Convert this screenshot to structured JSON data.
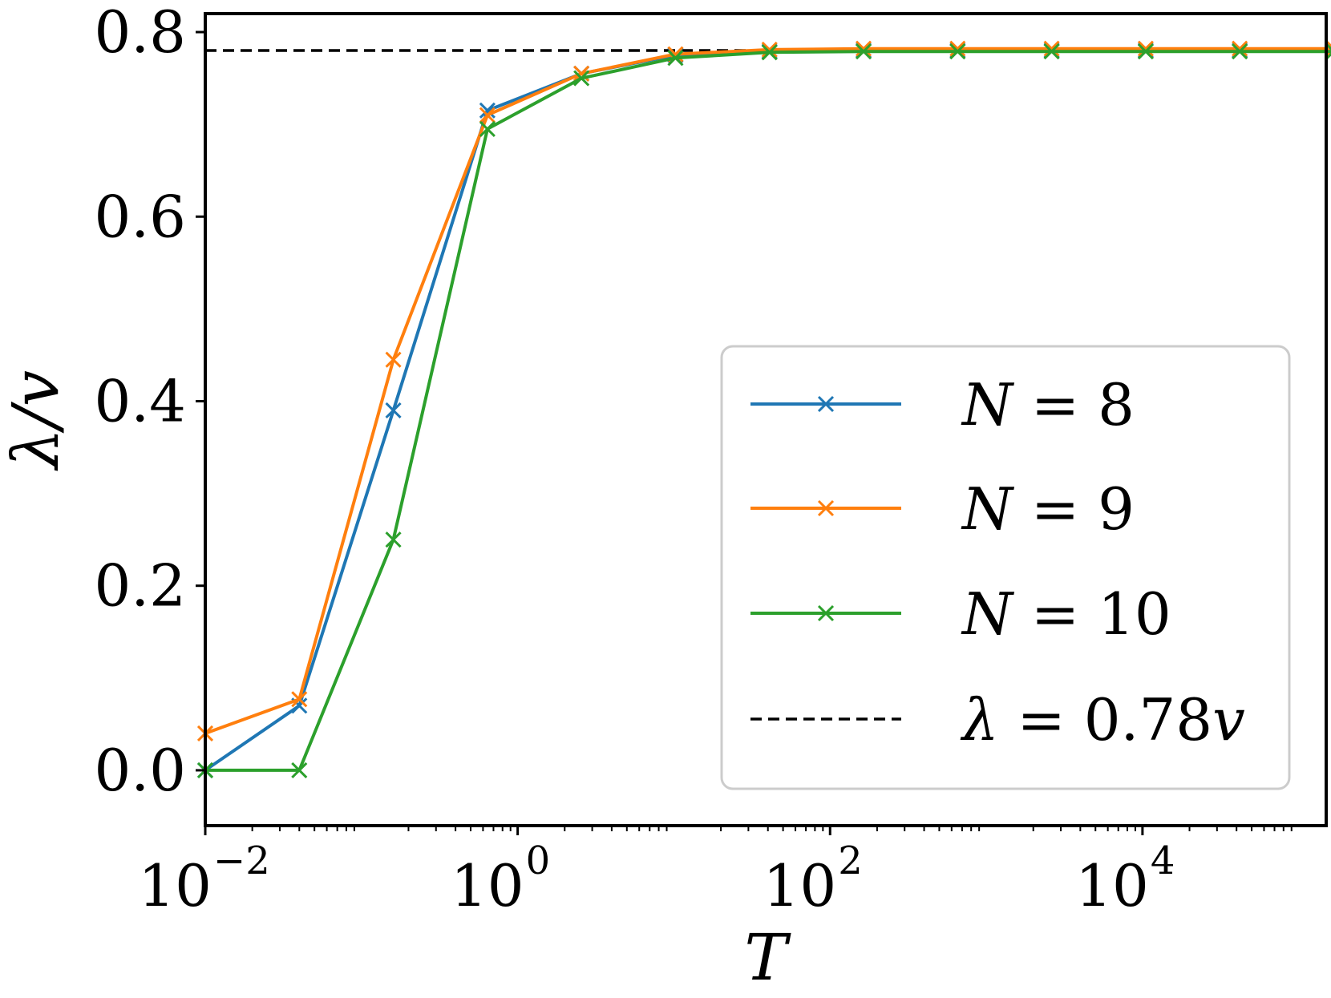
{
  "chart_data": {
    "type": "line",
    "xlabel": "T",
    "ylabel": "λ/v",
    "x_scale": "log",
    "xlim": [
      0.01,
      150000
    ],
    "ylim": [
      -0.06,
      0.82
    ],
    "grid": false,
    "legend_position": "lower-right",
    "x_ticks": [
      {
        "base": "10",
        "exp": "−2",
        "value": 0.01
      },
      {
        "base": "10",
        "exp": "0",
        "value": 1
      },
      {
        "base": "10",
        "exp": "2",
        "value": 100
      },
      {
        "base": "10",
        "exp": "4",
        "value": 10000
      }
    ],
    "y_ticks": [
      {
        "label": "0.0",
        "value": 0.0
      },
      {
        "label": "0.2",
        "value": 0.2
      },
      {
        "label": "0.4",
        "value": 0.4
      },
      {
        "label": "0.6",
        "value": 0.6
      },
      {
        "label": "0.8",
        "value": 0.8
      }
    ],
    "x": [
      0.01,
      0.04,
      0.16,
      0.64,
      2.56,
      10.24,
      40.96,
      163.84,
      655.36,
      2621.44,
      10485.76,
      41943.04,
      167772.16
    ],
    "series": [
      {
        "name": "N = 8",
        "name_var": "N",
        "name_rest": " = 8",
        "color": "#1f77b4",
        "values": [
          0.0,
          0.07,
          0.39,
          0.715,
          0.755,
          0.775,
          0.779,
          0.78,
          0.78,
          0.78,
          0.78,
          0.78,
          0.78
        ]
      },
      {
        "name": "N = 9",
        "name_var": "N",
        "name_rest": " = 9",
        "color": "#ff7f0e",
        "values": [
          0.04,
          0.077,
          0.445,
          0.71,
          0.755,
          0.776,
          0.781,
          0.782,
          0.782,
          0.782,
          0.782,
          0.782,
          0.782
        ]
      },
      {
        "name": "N = 10",
        "name_var": "N",
        "name_rest": " = 10",
        "color": "#2ca02c",
        "values": [
          0.0,
          0.0,
          0.25,
          0.695,
          0.75,
          0.772,
          0.778,
          0.779,
          0.779,
          0.779,
          0.779,
          0.779,
          0.779
        ]
      }
    ],
    "reference_line": {
      "name": "λ = 0.78v",
      "name_var": "λ",
      "name_rest": " = 0.78",
      "name_var2": "v",
      "value": 0.78,
      "color": "#000000",
      "style": "dashed"
    }
  }
}
